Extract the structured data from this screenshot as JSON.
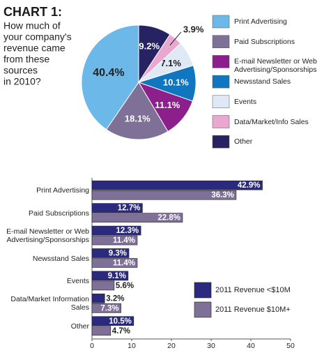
{
  "chart_data": [
    {
      "type": "pie",
      "title": "CHART 1:",
      "subtitle_lines": [
        "How much of",
        "your company's",
        "revenue came",
        "from these",
        "sources",
        "in 2010?"
      ],
      "categories": [
        "Print Advertising",
        "Paid Subscriptions",
        "E-mail Newsletter or Web Advertising/Sponsorships",
        "Newsstand Sales",
        "Events",
        "Data/Market/Info Sales",
        "Other"
      ],
      "values": [
        40.4,
        18.1,
        11.1,
        10.1,
        7.1,
        3.9,
        9.2
      ],
      "value_labels": [
        "40.4%",
        "18.1%",
        "11.1%",
        "10.1%",
        "7.1%",
        "3.9%",
        "9.2%"
      ],
      "colors": [
        "#6cb8e9",
        "#7e7096",
        "#8c1f8b",
        "#0f76bf",
        "#dfe9f6",
        "#eaa7d0",
        "#272363"
      ],
      "legend": "right"
    },
    {
      "type": "hbar",
      "categories": [
        "Print Advertising",
        "Paid Subscriptions",
        "E-mail Newsletter or Web Advertising/Sponsorships",
        "Newsstand Sales",
        "Events",
        "Data/Market Information Sales",
        "Other"
      ],
      "series": [
        {
          "name": "2011 Revenue <$10M",
          "color": "#2b2a7e",
          "values": [
            42.9,
            12.7,
            12.3,
            9.3,
            9.1,
            3.2,
            10.5
          ],
          "value_labels": [
            "42.9%",
            "12.7%",
            "12.3%",
            "9.3%",
            "9.1%",
            "3.2%",
            "10.5%"
          ]
        },
        {
          "name": "2011 Revenue $10M+",
          "color": "#7e7096",
          "values": [
            36.3,
            22.8,
            11.4,
            11.4,
            5.6,
            7.3,
            4.7
          ],
          "value_labels": [
            "36.3%",
            "22.8%",
            "11.4%",
            "11.4%",
            "5.6%",
            "7.3%",
            "4.7%"
          ]
        }
      ],
      "xlim": [
        0,
        50
      ],
      "xticks": [
        0,
        10,
        20,
        30,
        40,
        50
      ],
      "legend": "lower right"
    }
  ]
}
